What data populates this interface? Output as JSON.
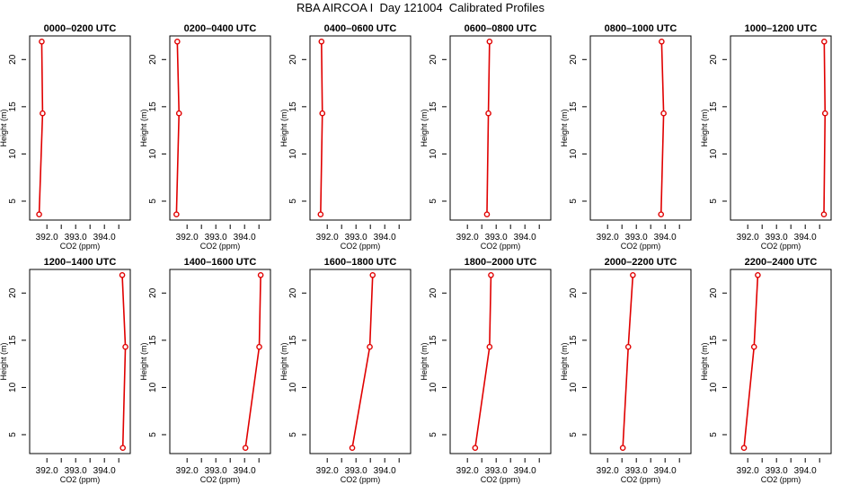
{
  "title": "RBA AIRCOA I  Day 121004  Calibrated Profiles",
  "colors": {
    "profile": "#e00000",
    "axes": "#000000",
    "background": "#ffffff"
  },
  "chart_data": {
    "type": "line",
    "panel_layout": "2 rows x 6 columns",
    "xlabel": "CO2 (ppm)",
    "ylabel": "Height (m)",
    "xlim": [
      391.4,
      394.9
    ],
    "ylim": [
      3,
      22.5
    ],
    "x_ticks": [
      392.0,
      392.5,
      393.0,
      393.5,
      394.0,
      394.5
    ],
    "x_tick_labels": [
      "392.0",
      "393.0",
      "394.0"
    ],
    "y_ticks": [
      5,
      10,
      15,
      20
    ],
    "y_tick_labels": [
      "5",
      "10",
      "15",
      "20"
    ],
    "grid": false,
    "legend": false,
    "heights": [
      3.6,
      14.3,
      21.9
    ],
    "panels": [
      {
        "title": "0000–0200 UTC",
        "co2": [
          391.73,
          391.85,
          391.82
        ]
      },
      {
        "title": "0200–0400 UTC",
        "co2": [
          391.63,
          391.72,
          391.66
        ]
      },
      {
        "title": "0400–0600 UTC",
        "co2": [
          391.77,
          391.83,
          391.8
        ]
      },
      {
        "title": "0600–0800 UTC",
        "co2": [
          392.68,
          392.73,
          392.77
        ]
      },
      {
        "title": "0800–1000 UTC",
        "co2": [
          393.86,
          393.95,
          393.88
        ]
      },
      {
        "title": "1000–1200 UTC",
        "co2": [
          394.65,
          394.69,
          394.66
        ]
      },
      {
        "title": "1200–1400 UTC",
        "co2": [
          394.64,
          394.73,
          394.62
        ]
      },
      {
        "title": "1400–1600 UTC",
        "co2": [
          394.03,
          394.51,
          394.56
        ]
      },
      {
        "title": "1600–1800 UTC",
        "co2": [
          392.87,
          393.48,
          393.58
        ]
      },
      {
        "title": "1800–2000 UTC",
        "co2": [
          392.27,
          392.77,
          392.82
        ]
      },
      {
        "title": "2000–2200 UTC",
        "co2": [
          392.53,
          392.72,
          392.88
        ]
      },
      {
        "title": "2200–2400 UTC",
        "co2": [
          391.87,
          392.22,
          392.35
        ]
      }
    ]
  }
}
